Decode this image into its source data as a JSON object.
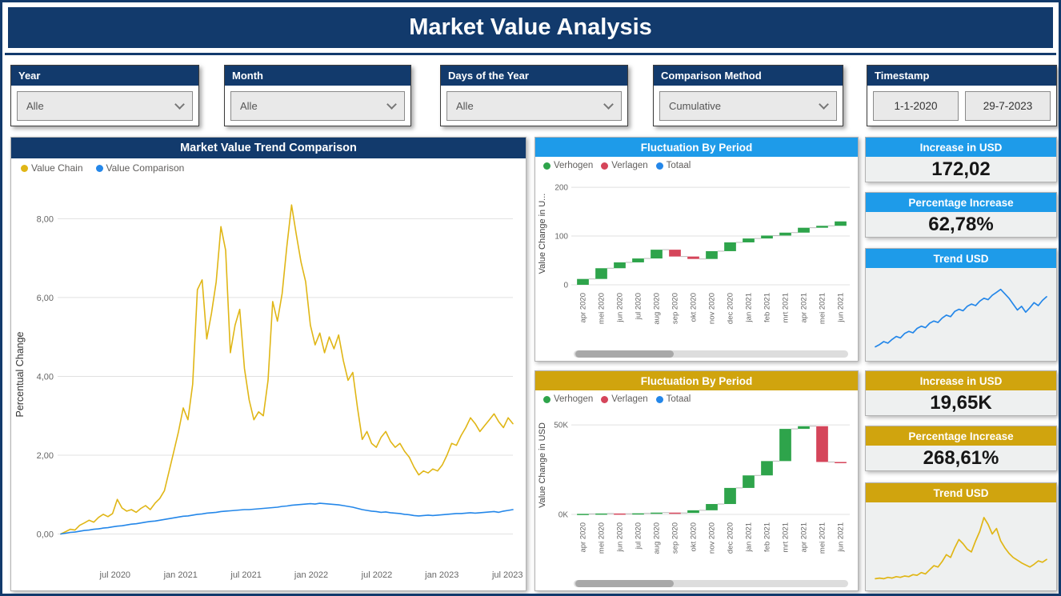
{
  "header": {
    "title": "Market Value Analysis"
  },
  "colors": {
    "navy": "#123a6c",
    "blue_header": "#1e9be9",
    "gold_header": "#d0a40e",
    "line_gold": "#e0b616",
    "line_blue": "#2487e9",
    "green": "#2ea44b",
    "red": "#d5455a"
  },
  "filters": [
    {
      "label": "Year",
      "value": "Alle"
    },
    {
      "label": "Month",
      "value": "Alle"
    },
    {
      "label": "Days of the Year",
      "value": "Alle"
    },
    {
      "label": "Comparison Method",
      "value": "Cumulative"
    }
  ],
  "timestamp": {
    "label": "Timestamp",
    "start": "1-1-2020",
    "end": "29-7-2023"
  },
  "kpis": [
    {
      "title": "Increase in USD",
      "value": "172,02",
      "theme": "blue"
    },
    {
      "title": "Percentage Increase",
      "value": "62,78%",
      "theme": "blue"
    },
    {
      "title": "Increase in USD",
      "value": "19,65K",
      "theme": "gold"
    },
    {
      "title": "Percentage Increase",
      "value": "268,61%",
      "theme": "gold"
    }
  ],
  "chart_data": [
    {
      "id": "trend-comparison",
      "type": "line",
      "title": "Market Value Trend Comparison",
      "ylabel": "Percentual Change",
      "ylim": [
        -0.7,
        8.8
      ],
      "yticks": [
        {
          "v": 0,
          "label": "0,00"
        },
        {
          "v": 2,
          "label": "2,00"
        },
        {
          "v": 4,
          "label": "4,00"
        },
        {
          "v": 6,
          "label": "6,00"
        },
        {
          "v": 8,
          "label": "8,00"
        }
      ],
      "xticks": [
        {
          "f": 0.12,
          "label": "jul 2020"
        },
        {
          "f": 0.265,
          "label": "jan 2021"
        },
        {
          "f": 0.41,
          "label": "jul 2021"
        },
        {
          "f": 0.554,
          "label": "jan 2022"
        },
        {
          "f": 0.699,
          "label": "jul 2022"
        },
        {
          "f": 0.843,
          "label": "jan 2023"
        },
        {
          "f": 0.988,
          "label": "jul 2023"
        }
      ],
      "series": [
        {
          "name": "Value Chain",
          "color": "#e0b616",
          "values": [
            0.0,
            0.06,
            0.12,
            0.1,
            0.22,
            0.28,
            0.35,
            0.3,
            0.42,
            0.5,
            0.44,
            0.52,
            0.88,
            0.66,
            0.58,
            0.62,
            0.55,
            0.65,
            0.72,
            0.62,
            0.78,
            0.9,
            1.1,
            1.6,
            2.1,
            2.6,
            3.2,
            2.9,
            3.8,
            6.2,
            6.45,
            4.95,
            5.6,
            6.4,
            7.8,
            7.2,
            4.6,
            5.3,
            5.7,
            4.2,
            3.4,
            2.9,
            3.1,
            3.0,
            3.9,
            5.9,
            5.4,
            6.1,
            7.3,
            8.35,
            7.6,
            6.9,
            6.4,
            5.3,
            4.8,
            5.1,
            4.6,
            5.0,
            4.7,
            5.05,
            4.4,
            3.9,
            4.1,
            3.2,
            2.4,
            2.6,
            2.3,
            2.2,
            2.45,
            2.6,
            2.35,
            2.2,
            2.3,
            2.1,
            1.95,
            1.7,
            1.5,
            1.6,
            1.55,
            1.65,
            1.6,
            1.75,
            2.0,
            2.3,
            2.25,
            2.5,
            2.7,
            2.95,
            2.8,
            2.6,
            2.75,
            2.9,
            3.05,
            2.85,
            2.7,
            2.95,
            2.8
          ]
        },
        {
          "name": "Value Comparison",
          "color": "#2487e9",
          "values": [
            0.0,
            0.02,
            0.04,
            0.05,
            0.07,
            0.09,
            0.1,
            0.12,
            0.13,
            0.15,
            0.16,
            0.18,
            0.2,
            0.21,
            0.23,
            0.25,
            0.26,
            0.28,
            0.3,
            0.32,
            0.33,
            0.35,
            0.37,
            0.39,
            0.41,
            0.43,
            0.45,
            0.46,
            0.48,
            0.5,
            0.51,
            0.53,
            0.54,
            0.55,
            0.57,
            0.58,
            0.59,
            0.6,
            0.61,
            0.62,
            0.62,
            0.63,
            0.64,
            0.65,
            0.66,
            0.67,
            0.68,
            0.7,
            0.71,
            0.73,
            0.74,
            0.75,
            0.76,
            0.77,
            0.76,
            0.78,
            0.77,
            0.76,
            0.75,
            0.74,
            0.72,
            0.7,
            0.68,
            0.65,
            0.62,
            0.6,
            0.58,
            0.57,
            0.55,
            0.56,
            0.54,
            0.53,
            0.52,
            0.5,
            0.49,
            0.47,
            0.46,
            0.47,
            0.48,
            0.47,
            0.48,
            0.49,
            0.5,
            0.51,
            0.52,
            0.52,
            0.53,
            0.54,
            0.53,
            0.54,
            0.55,
            0.56,
            0.57,
            0.55,
            0.58,
            0.6,
            0.62
          ]
        }
      ]
    },
    {
      "id": "fluctuation-by-period-usd-small",
      "type": "waterfall",
      "title": "Fluctuation By Period",
      "theme": "blue",
      "ylabel": "Value Change in U...",
      "legend": [
        {
          "name": "Verhogen",
          "color": "#2ea44b"
        },
        {
          "name": "Verlagen",
          "color": "#d5455a"
        },
        {
          "name": "Totaal",
          "color": "#2487e9"
        }
      ],
      "categories": [
        "apr 2020",
        "mei 2020",
        "jun 2020",
        "jul 2020",
        "aug 2020",
        "sep 2020",
        "okt 2020",
        "nov 2020",
        "dec 2020",
        "jan 2021",
        "feb 2021",
        "mrt 2021",
        "apr 2021",
        "mei 2021",
        "jun 2021"
      ],
      "changes": [
        12,
        22,
        12,
        8,
        18,
        -14,
        -5,
        16,
        18,
        8,
        6,
        6,
        10,
        4,
        9
      ],
      "ylim": [
        0,
        210
      ],
      "yticks": [
        {
          "v": 0,
          "label": "0"
        },
        {
          "v": 100,
          "label": "100"
        },
        {
          "v": 200,
          "label": "200"
        }
      ]
    },
    {
      "id": "fluctuation-by-period-usd-large",
      "type": "waterfall",
      "title": "Fluctuation By Period",
      "theme": "gold",
      "ylabel": "Value Change in USD",
      "legend": [
        {
          "name": "Verhogen",
          "color": "#2ea44b"
        },
        {
          "name": "Verlagen",
          "color": "#d5455a"
        },
        {
          "name": "Totaal",
          "color": "#2487e9"
        }
      ],
      "categories": [
        "apr 2020",
        "mei 2020",
        "jun 2020",
        "jul 2020",
        "aug 2020",
        "sep 2020",
        "okt 2020",
        "nov 2020",
        "dec 2020",
        "jan 2021",
        "feb 2021",
        "mrt 2021",
        "apr 2021",
        "mei 2021",
        "jun 2021"
      ],
      "changes": [
        300,
        200,
        -150,
        250,
        400,
        -200,
        1500,
        3500,
        9000,
        7000,
        8000,
        18000,
        1500,
        -20000,
        -400
      ],
      "ylim": [
        0,
        55000
      ],
      "yticks": [
        {
          "v": 0,
          "label": "0K"
        },
        {
          "v": 50000,
          "label": "50K"
        }
      ]
    },
    {
      "id": "trend-usd-blue",
      "type": "sparkline",
      "title": "Trend USD",
      "color": "#2487e9",
      "ylim": [
        0,
        100
      ],
      "values": [
        6,
        9,
        13,
        11,
        16,
        20,
        18,
        24,
        27,
        25,
        31,
        34,
        32,
        38,
        41,
        39,
        45,
        49,
        47,
        54,
        57,
        55,
        61,
        64,
        62,
        68,
        72,
        70,
        76,
        80,
        84,
        78,
        72,
        64,
        56,
        61,
        53,
        59,
        66,
        62,
        69,
        74
      ]
    },
    {
      "id": "trend-usd-gold",
      "type": "sparkline",
      "title": "Trend USD",
      "color": "#e0b616",
      "ylim": [
        0,
        100
      ],
      "values": [
        3,
        4,
        3,
        5,
        4,
        6,
        5,
        7,
        6,
        9,
        8,
        12,
        10,
        16,
        22,
        20,
        28,
        38,
        34,
        48,
        60,
        54,
        46,
        42,
        58,
        72,
        92,
        82,
        68,
        76,
        58,
        48,
        40,
        34,
        30,
        26,
        23,
        20,
        24,
        29,
        27,
        31
      ]
    }
  ]
}
